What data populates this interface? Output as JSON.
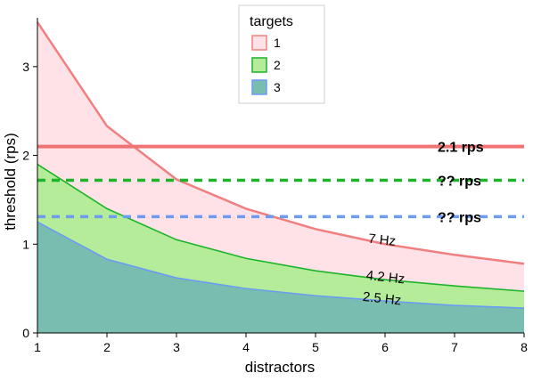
{
  "chart_data": {
    "type": "area",
    "xlabel": "distractors",
    "ylabel": "threshold (rps)",
    "xlim": [
      1,
      8
    ],
    "ylim": [
      0,
      3.55
    ],
    "xticks": [
      1,
      2,
      3,
      4,
      5,
      6,
      7,
      8
    ],
    "yticks": [
      0,
      1,
      2,
      3
    ],
    "x": [
      1,
      2,
      3,
      4,
      5,
      6,
      7,
      8
    ],
    "legend": {
      "title": "targets",
      "placement": "top-center"
    },
    "series": [
      {
        "name": "1",
        "values": [
          3.5,
          2.33,
          1.73,
          1.4,
          1.17,
          1.0,
          0.88,
          0.78
        ],
        "stroke": "#f08080",
        "fill": "#ffe2e8"
      },
      {
        "name": "2",
        "values": [
          1.9,
          1.4,
          1.05,
          0.84,
          0.7,
          0.6,
          0.53,
          0.47
        ],
        "stroke": "#1db32a",
        "fill": "#b4ec9a"
      },
      {
        "name": "3",
        "values": [
          1.25,
          0.83,
          0.62,
          0.5,
          0.42,
          0.36,
          0.31,
          0.28
        ],
        "stroke": "#6b9cf0",
        "fill": "#79bdb1"
      }
    ],
    "hlines": [
      {
        "y": 2.1,
        "label": "2.1 rps",
        "color": "#f07373",
        "style": "solid"
      },
      {
        "y": 1.72,
        "label": "?? rps",
        "color": "#1db32a",
        "style": "dashed"
      },
      {
        "y": 1.31,
        "label": "?? rps",
        "color": "#6b9cf0",
        "style": "dashed"
      }
    ],
    "curve_labels": [
      {
        "text": "7 Hz",
        "x": 5.95,
        "y": 1.0
      },
      {
        "text": "4.2 Hz",
        "x": 6.0,
        "y": 0.58
      },
      {
        "text": "2.5 Hz",
        "x": 5.95,
        "y": 0.34
      }
    ]
  }
}
